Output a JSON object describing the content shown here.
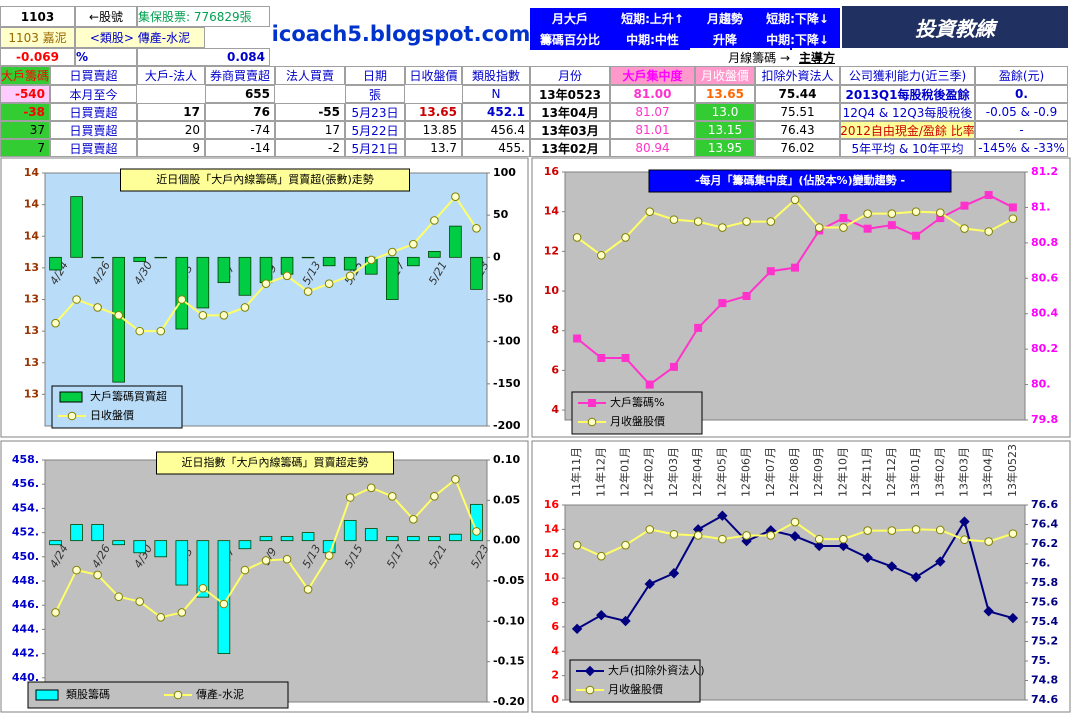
{
  "header": {
    "info": [
      "1103",
      "←股號",
      "集保股票: 776829張",
      "1103 嘉泥",
      "<類股> 傳產-水泥",
      "-0.069",
      "%",
      "0.084"
    ],
    "site": "icoach5.blogspot.com",
    "columns": [
      "大戶籌碼",
      "日買賣超",
      "大戶-法人",
      "券商買賣超",
      "法人買賣",
      "日期",
      "日收盤價",
      "類股指數"
    ],
    "month_to_date": [
      "-540",
      "本月至今",
      "655",
      "張",
      "N"
    ],
    "rows": [
      [
        "-38",
        "日買賣超",
        "17",
        "76",
        "-55",
        "5月23日",
        "13.65",
        "452.1"
      ],
      [
        "37",
        "日買賣超",
        "20",
        "-74",
        "17",
        "5月22日",
        "13.85",
        "456.4"
      ],
      [
        "7",
        "日買賣超",
        "9",
        "-14",
        "-2",
        "5月21日",
        "13.7",
        "455."
      ]
    ],
    "signals": [
      "月大戶",
      "籌碼百分比",
      "短期:上升↑",
      "中期:中性",
      "月趨勢",
      "升降",
      "短期:下降↓",
      "中期:下降↓"
    ],
    "logo": "投資教練",
    "monthly_caption": [
      "月線籌碼 →",
      "主導方"
    ],
    "monthly_columns": [
      "月份",
      "大戶集中度",
      "月收盤價",
      "扣除外資法人",
      "公司獲利能力(近三季)",
      "盈餘(元)"
    ],
    "monthly_rows": [
      [
        "13年0523",
        "81.00",
        "13.65",
        "75.44",
        "2013Q1每股稅後盈餘",
        "0."
      ],
      [
        "13年04月",
        "81.07",
        "13.0",
        "75.51",
        "12Q4 & 12Q3每股稅後",
        "-0.05 & -0.9"
      ],
      [
        "13年03月",
        "81.01",
        "13.15",
        "76.43",
        "2012自由現金/盈餘 比率",
        "-"
      ],
      [
        "13年02月",
        "80.94",
        "13.95",
        "76.02",
        "5年平均 & 10年平均",
        "-145% & -33%"
      ]
    ]
  },
  "chart_data": [
    {
      "type": "combo",
      "title": "近日個股「大戶內線籌碼」買賣超(張數)走勢",
      "legend": "lower left",
      "categories": [
        "4/24",
        null,
        "4/26",
        null,
        "4/30",
        null,
        "5/3",
        null,
        "5/7",
        null,
        "5/9",
        null,
        "5/13",
        null,
        "5/15",
        null,
        "5/17",
        null,
        "5/21",
        null,
        "5/23"
      ],
      "series": [
        {
          "name": "大戶籌碼買賣超",
          "type": "bar",
          "axis": "y2",
          "color": "#00cc44",
          "values": [
            -15,
            72,
            0,
            -148,
            -5,
            0,
            -85,
            -60,
            -30,
            -45,
            -30,
            -20,
            0,
            -10,
            -15,
            -20,
            -50,
            -10,
            7,
            37,
            -38
          ]
        },
        {
          "name": "日收盤價",
          "type": "line",
          "axis": "y",
          "color": "#ffff66",
          "marker": "circle",
          "values": [
            13.05,
            13.2,
            13.15,
            13.1,
            13.0,
            13.0,
            13.2,
            13.1,
            13.1,
            13.15,
            13.3,
            13.35,
            13.25,
            13.3,
            13.35,
            13.45,
            13.5,
            13.55,
            13.7,
            13.85,
            13.65
          ]
        }
      ],
      "ylim": [
        12.4,
        14.0
      ],
      "yticks": [
        14,
        {
          "value": 13.8,
          "label": "14"
        },
        {
          "value": 13.6,
          "label": "14"
        },
        {
          "value": 13.4,
          "label": "13"
        },
        {
          "value": 13.2,
          "label": "13"
        },
        13,
        {
          "value": 12.8,
          "label": "13"
        },
        {
          "value": 12.6,
          "label": "13"
        }
      ],
      "y2lim": [
        -200,
        100
      ],
      "y2ticks": [
        100,
        50,
        0,
        -50,
        -100,
        -150,
        -200
      ]
    },
    {
      "type": "line",
      "title": "-每月「籌碼集中度」(佔股本%)變動趨勢 -",
      "legend": "lower left",
      "categories": [
        null,
        null,
        null,
        null,
        null,
        null,
        null,
        null,
        null,
        null,
        null,
        null,
        null,
        null,
        null,
        null,
        null,
        null,
        null
      ],
      "series": [
        {
          "name": "大戶籌碼%",
          "type": "line",
          "axis": "y2",
          "color": "#ff33cc",
          "marker": "square",
          "values": [
            80.26,
            80.15,
            80.15,
            80.0,
            80.1,
            80.32,
            80.46,
            80.5,
            80.64,
            80.66,
            80.87,
            80.94,
            80.88,
            80.9,
            80.84,
            80.94,
            81.01,
            81.07,
            81.0
          ]
        },
        {
          "name": "月收盤股價",
          "type": "line",
          "axis": "y",
          "color": "#ffff66",
          "marker": "circle",
          "values": [
            12.7,
            11.8,
            12.7,
            14.0,
            13.6,
            13.5,
            13.2,
            13.5,
            13.5,
            14.6,
            13.2,
            13.2,
            13.9,
            13.9,
            14.0,
            13.95,
            13.15,
            13.0,
            13.65
          ]
        }
      ],
      "ylim": [
        3.5,
        16
      ],
      "yticks": [
        16,
        14,
        12,
        10,
        8,
        6,
        4
      ],
      "y2lim": [
        79.8,
        81.2
      ],
      "y2ticks": [
        81.2,
        {
          "value": 81,
          "label": "81."
        },
        80.8,
        80.6,
        80.4,
        80.2,
        {
          "value": 80,
          "label": "80."
        },
        79.8
      ]
    },
    {
      "type": "combo",
      "title": "近日指數「大戶內線籌碼」買賣超走勢",
      "legend": "lower left",
      "categories": [
        "4/24",
        null,
        "4/26",
        null,
        "4/30",
        null,
        "5/3",
        null,
        "5/7",
        null,
        "5/9",
        null,
        "5/13",
        null,
        "5/15",
        null,
        "5/17",
        null,
        "5/21",
        null,
        "5/23"
      ],
      "series": [
        {
          "name": "類股籌碼",
          "type": "bar",
          "axis": "y2",
          "color": "#00ffff",
          "values": [
            -0.005,
            0.02,
            0.02,
            -0.005,
            -0.015,
            -0.02,
            -0.055,
            -0.07,
            -0.14,
            -0.01,
            0.005,
            0.005,
            0.01,
            -0.015,
            0.025,
            0.015,
            0.005,
            0.005,
            0.005,
            0.008,
            0.045
          ]
        },
        {
          "name": "傳產-水泥",
          "type": "line",
          "axis": "y",
          "color": "#ffff66",
          "marker": "circle",
          "values": [
            445.4,
            448.9,
            448.5,
            446.7,
            446.3,
            445.0,
            445.4,
            447.4,
            446.1,
            448.9,
            449.7,
            449.8,
            447.3,
            450.1,
            454.9,
            455.7,
            455.0,
            453.1,
            455.0,
            456.4,
            452.1
          ]
        }
      ],
      "ylim": [
        438,
        458
      ],
      "yticks": [
        {
          "value": 458,
          "label": "458."
        },
        {
          "value": 456,
          "label": "456."
        },
        {
          "value": 454,
          "label": "454."
        },
        {
          "value": 452,
          "label": "452."
        },
        {
          "value": 450,
          "label": "450."
        },
        {
          "value": 448,
          "label": "448."
        },
        {
          "value": 446,
          "label": "446."
        },
        {
          "value": 444,
          "label": "444."
        },
        {
          "value": 442,
          "label": "442."
        },
        {
          "value": 440,
          "label": "440."
        }
      ],
      "y2lim": [
        -0.2,
        0.1
      ],
      "y2ticks": [
        {
          "value": 0.1,
          "label": "0.10"
        },
        0.05,
        {
          "value": 0,
          "label": "0.00"
        },
        -0.05,
        {
          "value": -0.1,
          "label": "-0.10"
        },
        -0.15,
        {
          "value": -0.2,
          "label": "-0.20"
        }
      ]
    },
    {
      "type": "line",
      "legend": "lower left",
      "categories": [
        "11年11月",
        "11年12月",
        "12年01月",
        "12年02月",
        "12年03月",
        "12年04月",
        "12年05月",
        "12年06月",
        "12年07月",
        "12年08月",
        "12年09月",
        "12年10月",
        "12年11月",
        "12年12月",
        "13年01月",
        "13年02月",
        "13年03月",
        "13年04月",
        "13年0523"
      ],
      "series": [
        {
          "name": "大戶(扣除外資法人)",
          "type": "line",
          "axis": "y2",
          "color": "#000080",
          "marker": "diamond",
          "values": [
            75.33,
            75.47,
            75.41,
            75.79,
            75.9,
            76.35,
            76.49,
            76.23,
            76.34,
            76.28,
            76.18,
            76.18,
            76.06,
            75.97,
            75.86,
            76.02,
            76.43,
            75.51,
            75.44
          ]
        },
        {
          "name": "月收盤股價",
          "type": "line",
          "axis": "y",
          "color": "#ffff66",
          "marker": "circle",
          "values": [
            12.7,
            11.8,
            12.7,
            14.0,
            13.6,
            13.5,
            13.2,
            13.5,
            13.5,
            14.6,
            13.2,
            13.2,
            13.9,
            13.9,
            14.0,
            13.95,
            13.15,
            13.0,
            13.65
          ]
        }
      ],
      "ylim": [
        0,
        16
      ],
      "yticks": [
        16,
        14,
        12,
        10,
        8,
        6,
        4,
        2,
        0
      ],
      "y2lim": [
        74.6,
        76.6
      ],
      "y2ticks": [
        76.6,
        76.4,
        76.2,
        {
          "value": 76,
          "label": "76."
        },
        75.8,
        75.6,
        75.4,
        75.2,
        {
          "value": 75,
          "label": "75."
        },
        74.8,
        74.6
      ]
    }
  ]
}
